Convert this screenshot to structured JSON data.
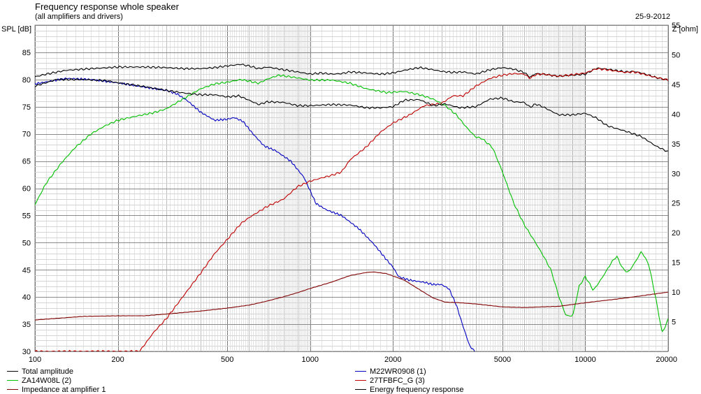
{
  "chart_data": {
    "type": "line",
    "title": "Frequency response whole speaker",
    "subtitle": "(all amplifiers and drivers)",
    "date": "25-9-2012",
    "ylabel": "SPL [dB]",
    "y2label": "Z [ohm]",
    "xscale": "log",
    "xlim": [
      100,
      20000
    ],
    "ylim": [
      30,
      90
    ],
    "y2lim": [
      0,
      55
    ],
    "xticks": [
      100,
      200,
      500,
      1000,
      2000,
      5000,
      10000,
      20000
    ],
    "xtick_labels": [
      "100",
      "200",
      "500",
      "1000",
      "2000",
      "5000",
      "10000",
      "20000"
    ],
    "yticks": [
      30,
      35,
      40,
      45,
      50,
      55,
      60,
      65,
      70,
      75,
      80,
      85
    ],
    "y2ticks": [
      5,
      10,
      15,
      20,
      25,
      30,
      35,
      40,
      45,
      50,
      55
    ],
    "grid": true,
    "legend_position": "bottom",
    "series": [
      {
        "name": "Total amplitude",
        "color": "#000000",
        "axis": "left",
        "points": [
          [
            100,
            80.5
          ],
          [
            110,
            81
          ],
          [
            130,
            81.7
          ],
          [
            160,
            82
          ],
          [
            200,
            82.3
          ],
          [
            250,
            82.3
          ],
          [
            300,
            82.2
          ],
          [
            350,
            82
          ],
          [
            400,
            82
          ],
          [
            450,
            82.2
          ],
          [
            500,
            82.5
          ],
          [
            560,
            82.8
          ],
          [
            600,
            82.5
          ],
          [
            650,
            82
          ],
          [
            700,
            82.3
          ],
          [
            800,
            81.8
          ],
          [
            900,
            81.4
          ],
          [
            1000,
            81
          ],
          [
            1100,
            81.2
          ],
          [
            1200,
            81
          ],
          [
            1300,
            81.1
          ],
          [
            1400,
            81.4
          ],
          [
            1600,
            81.2
          ],
          [
            1800,
            81
          ],
          [
            2000,
            81.2
          ],
          [
            2200,
            81.7
          ],
          [
            2500,
            82.2
          ],
          [
            2800,
            81.8
          ],
          [
            3000,
            81.5
          ],
          [
            3300,
            81.3
          ],
          [
            3600,
            81.4
          ],
          [
            4000,
            81
          ],
          [
            4500,
            81.8
          ],
          [
            5000,
            82.2
          ],
          [
            5500,
            81.9
          ],
          [
            6000,
            81.3
          ],
          [
            6300,
            80.4
          ],
          [
            6600,
            81.1
          ],
          [
            7000,
            81
          ],
          [
            8000,
            80.6
          ],
          [
            9000,
            80.8
          ],
          [
            10000,
            81
          ],
          [
            11000,
            82.1
          ],
          [
            12000,
            81.9
          ],
          [
            14000,
            81.4
          ],
          [
            15000,
            81.5
          ],
          [
            16000,
            81.2
          ],
          [
            18000,
            80.4
          ],
          [
            20000,
            79.9
          ]
        ]
      },
      {
        "name": "M22WR0908 (1)",
        "color": "#0000c0",
        "axis": "left",
        "points": [
          [
            100,
            79.2
          ],
          [
            130,
            80.2
          ],
          [
            160,
            80
          ],
          [
            200,
            79.4
          ],
          [
            250,
            78.6
          ],
          [
            300,
            78
          ],
          [
            330,
            77.3
          ],
          [
            360,
            76
          ],
          [
            400,
            74
          ],
          [
            450,
            72.5
          ],
          [
            500,
            72.7
          ],
          [
            530,
            73
          ],
          [
            570,
            72.3
          ],
          [
            620,
            70
          ],
          [
            680,
            67.8
          ],
          [
            750,
            66.9
          ],
          [
            850,
            65
          ],
          [
            950,
            62
          ],
          [
            1050,
            57.2
          ],
          [
            1150,
            56
          ],
          [
            1300,
            55
          ],
          [
            1500,
            52.6
          ],
          [
            1700,
            49.8
          ],
          [
            1900,
            46.8
          ],
          [
            2000,
            45.5
          ],
          [
            2100,
            43.7
          ],
          [
            2300,
            43.1
          ],
          [
            2600,
            42.7
          ],
          [
            2800,
            42.3
          ],
          [
            3000,
            42.3
          ],
          [
            3200,
            41.5
          ],
          [
            3400,
            38.5
          ],
          [
            3600,
            34.5
          ],
          [
            3800,
            31
          ],
          [
            4000,
            29.8
          ]
        ]
      },
      {
        "name": "ZA14W08L (2)",
        "color": "#00c000",
        "axis": "left",
        "points": [
          [
            100,
            57
          ],
          [
            110,
            61
          ],
          [
            125,
            64.7
          ],
          [
            140,
            67.5
          ],
          [
            160,
            70
          ],
          [
            180,
            71.5
          ],
          [
            200,
            72.5
          ],
          [
            230,
            73.2
          ],
          [
            270,
            73.9
          ],
          [
            300,
            74.6
          ],
          [
            350,
            76.6
          ],
          [
            400,
            78.3
          ],
          [
            450,
            79.2
          ],
          [
            500,
            79.5
          ],
          [
            560,
            80
          ],
          [
            600,
            79.7
          ],
          [
            650,
            79.3
          ],
          [
            700,
            80.1
          ],
          [
            770,
            80.8
          ],
          [
            900,
            80.3
          ],
          [
            1000,
            79.9
          ],
          [
            1200,
            79.9
          ],
          [
            1400,
            79.3
          ],
          [
            1600,
            78.3
          ],
          [
            1900,
            77.6
          ],
          [
            2200,
            77.8
          ],
          [
            2500,
            77.2
          ],
          [
            2800,
            76.4
          ],
          [
            3100,
            75.2
          ],
          [
            3400,
            73.5
          ],
          [
            3700,
            71.2
          ],
          [
            4000,
            69.4
          ],
          [
            4200,
            69.2
          ],
          [
            4600,
            67.5
          ],
          [
            5000,
            63
          ],
          [
            5500,
            57.2
          ],
          [
            6000,
            53.3
          ],
          [
            6500,
            50.5
          ],
          [
            7000,
            47.8
          ],
          [
            7500,
            45
          ],
          [
            8000,
            40.2
          ],
          [
            8500,
            36.6
          ],
          [
            9000,
            36.5
          ],
          [
            9500,
            42
          ],
          [
            10000,
            43.8
          ],
          [
            10700,
            41.2
          ],
          [
            11500,
            43.5
          ],
          [
            12500,
            46.5
          ],
          [
            13000,
            47.5
          ],
          [
            13700,
            45.2
          ],
          [
            14300,
            44.5
          ],
          [
            15000,
            46
          ],
          [
            16000,
            48.4
          ],
          [
            17000,
            46
          ],
          [
            18000,
            40
          ],
          [
            19000,
            33.5
          ],
          [
            19500,
            34.5
          ],
          [
            20000,
            36
          ]
        ]
      },
      {
        "name": "27TFBFC_G (3)",
        "color": "#c00000",
        "axis": "left",
        "points": [
          [
            100,
            30
          ],
          [
            240,
            30
          ],
          [
            270,
            33.5
          ],
          [
            300,
            36
          ],
          [
            350,
            40.5
          ],
          [
            400,
            44.4
          ],
          [
            450,
            48
          ],
          [
            500,
            50.6
          ],
          [
            560,
            53.5
          ],
          [
            600,
            54.6
          ],
          [
            700,
            56.7
          ],
          [
            800,
            58
          ],
          [
            900,
            60.3
          ],
          [
            1000,
            61.3
          ],
          [
            1100,
            61.9
          ],
          [
            1200,
            62.4
          ],
          [
            1300,
            63
          ],
          [
            1400,
            65.3
          ],
          [
            1600,
            67.6
          ],
          [
            1800,
            70.3
          ],
          [
            2000,
            72
          ],
          [
            2300,
            73.5
          ],
          [
            2600,
            75.2
          ],
          [
            3000,
            75.6
          ],
          [
            3300,
            77
          ],
          [
            3600,
            77
          ],
          [
            4000,
            78.8
          ],
          [
            4500,
            80.2
          ],
          [
            5000,
            80.8
          ],
          [
            5500,
            81.1
          ],
          [
            6000,
            81
          ],
          [
            6300,
            80.2
          ],
          [
            6600,
            80.9
          ],
          [
            7000,
            81
          ],
          [
            8000,
            80.6
          ],
          [
            9000,
            80.9
          ],
          [
            10000,
            81.2
          ],
          [
            11000,
            82
          ],
          [
            12000,
            81.8
          ],
          [
            14000,
            81.3
          ],
          [
            15000,
            81.4
          ],
          [
            16000,
            81.1
          ],
          [
            18000,
            80.4
          ],
          [
            20000,
            79.9
          ]
        ]
      },
      {
        "name": "Impedance at amplifier 1",
        "color": "#800000",
        "axis": "right",
        "points": [
          [
            100,
            5.3
          ],
          [
            150,
            5.9
          ],
          [
            200,
            6
          ],
          [
            250,
            6
          ],
          [
            300,
            6.3
          ],
          [
            400,
            6.8
          ],
          [
            500,
            7.3
          ],
          [
            600,
            7.8
          ],
          [
            700,
            8.5
          ],
          [
            800,
            9.2
          ],
          [
            900,
            9.9
          ],
          [
            1000,
            10.6
          ],
          [
            1200,
            11.7
          ],
          [
            1400,
            12.8
          ],
          [
            1600,
            13.3
          ],
          [
            1700,
            13.4
          ],
          [
            1900,
            13.1
          ],
          [
            2200,
            12
          ],
          [
            2500,
            10.4
          ],
          [
            2800,
            9
          ],
          [
            3100,
            8.3
          ],
          [
            3500,
            8.2
          ],
          [
            4000,
            8
          ],
          [
            5000,
            7.5
          ],
          [
            6000,
            7.4
          ],
          [
            8000,
            7.6
          ],
          [
            10000,
            8.2
          ],
          [
            14000,
            9
          ],
          [
            20000,
            10
          ]
        ]
      },
      {
        "name": "Energy frequency response",
        "color": "#000000",
        "axis": "left",
        "points": [
          [
            100,
            78.8
          ],
          [
            120,
            80
          ],
          [
            150,
            80
          ],
          [
            180,
            79.8
          ],
          [
            200,
            79.4
          ],
          [
            250,
            78.7
          ],
          [
            300,
            78
          ],
          [
            350,
            77.5
          ],
          [
            400,
            77.2
          ],
          [
            450,
            77.2
          ],
          [
            500,
            76.8
          ],
          [
            550,
            77
          ],
          [
            600,
            76.2
          ],
          [
            650,
            75.4
          ],
          [
            700,
            75.9
          ],
          [
            800,
            75.8
          ],
          [
            900,
            75.2
          ],
          [
            1000,
            75.2
          ],
          [
            1200,
            75.4
          ],
          [
            1400,
            75.3
          ],
          [
            1600,
            74.8
          ],
          [
            1800,
            74.8
          ],
          [
            2000,
            75
          ],
          [
            2200,
            76.2
          ],
          [
            2500,
            76.3
          ],
          [
            2800,
            75.2
          ],
          [
            3100,
            75.5
          ],
          [
            3500,
            74.8
          ],
          [
            4000,
            75
          ],
          [
            4500,
            76.4
          ],
          [
            5000,
            76.6
          ],
          [
            5500,
            75.9
          ],
          [
            6000,
            75.8
          ],
          [
            6300,
            74.9
          ],
          [
            6600,
            75.5
          ],
          [
            7000,
            75
          ],
          [
            8000,
            73.5
          ],
          [
            9000,
            73.5
          ],
          [
            10000,
            73.8
          ],
          [
            11000,
            72.9
          ],
          [
            12000,
            71.5
          ],
          [
            14000,
            70.5
          ],
          [
            16000,
            69.5
          ],
          [
            18000,
            67.8
          ],
          [
            20000,
            66.7
          ]
        ]
      }
    ]
  }
}
